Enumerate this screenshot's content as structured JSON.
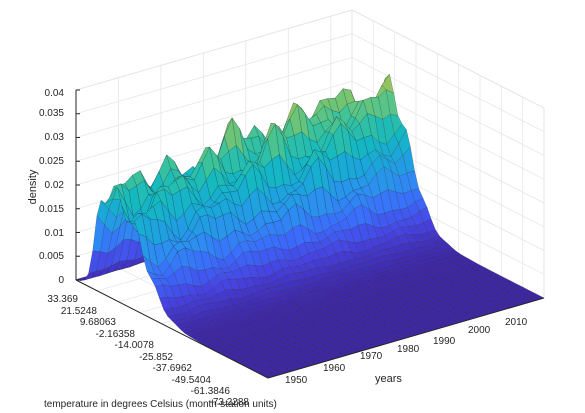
{
  "chart_data": {
    "type": "surface",
    "title": "",
    "zlabel": "density",
    "ylabel": "years",
    "xlabel": "temperature in degrees Celsius (month-station units)",
    "zlim": [
      0,
      0.04
    ],
    "z_ticks": [
      "0",
      "0.005",
      "0.01",
      "0.015",
      "0.02",
      "0.025",
      "0.03",
      "0.035",
      "0.04"
    ],
    "year_range": [
      1950,
      2015
    ],
    "year_ticks": [
      "1950",
      "1960",
      "1970",
      "1980",
      "1990",
      "2000",
      "2010"
    ],
    "temperature_range": [
      33.369,
      -73.2288
    ],
    "temperature_ticks": [
      "33.369",
      "21.5248",
      "9.68063",
      "-2.16358",
      "-14.0078",
      "-25.852",
      "-37.6962",
      "-49.5404",
      "-61.3846",
      "-73.2288"
    ],
    "grid": true,
    "colormap": [
      "#3e26a8",
      "#4743e2",
      "#3a6cfd",
      "#2c8ff0",
      "#1ba6db",
      "#14b9c0",
      "#3fc398",
      "#88c566",
      "#cfba43",
      "#f8c43c",
      "#f9fb14"
    ],
    "edge_color": "#1a1a1a"
  }
}
